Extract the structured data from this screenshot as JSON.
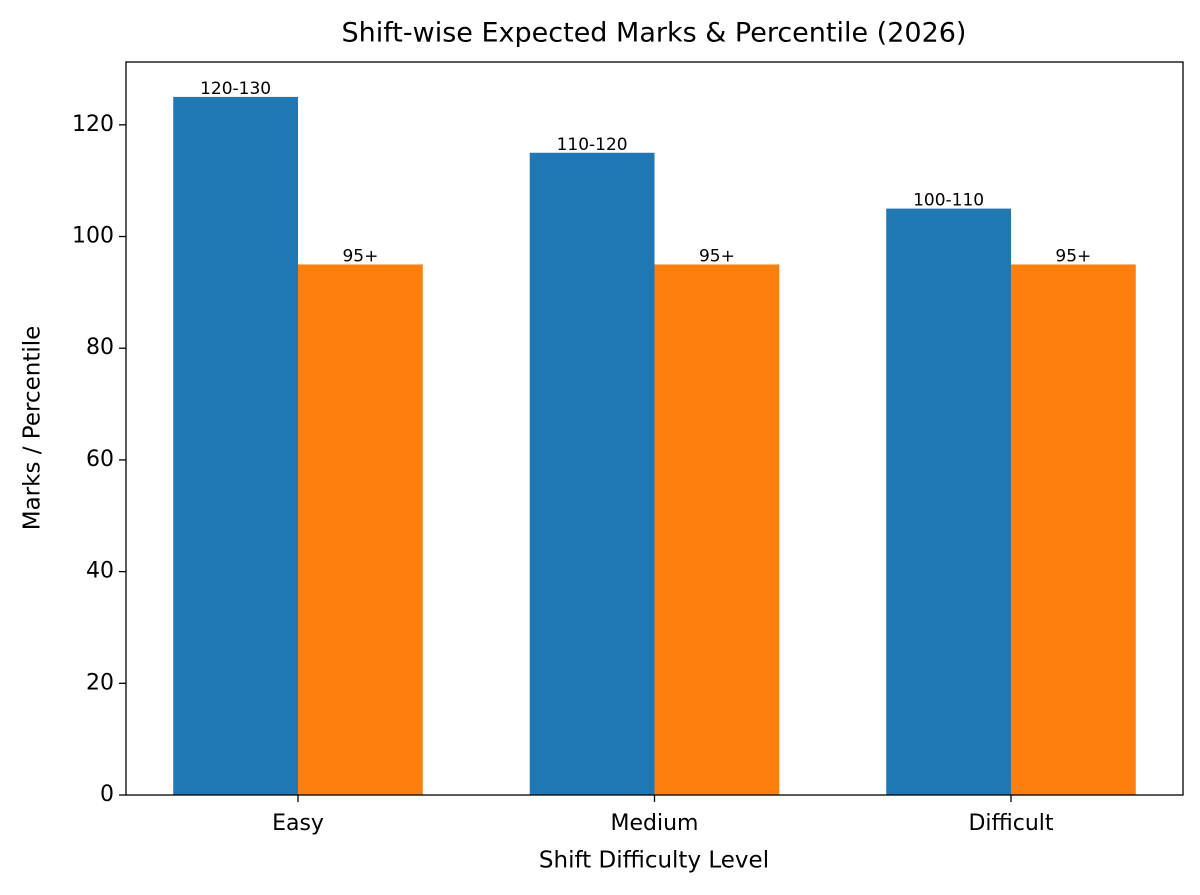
{
  "chart_data": {
    "type": "bar",
    "title": "Shift-wise Expected Marks & Percentile (2026)",
    "x_label": "Shift Difficulty Level",
    "y_label": "Marks / Percentile",
    "categories": [
      "Easy",
      "Medium",
      "Difficult"
    ],
    "series": [
      {
        "color": "#1f77b4",
        "values": [
          125,
          115,
          105
        ],
        "value_labels": [
          "120-130",
          "110-120",
          "100-110"
        ]
      },
      {
        "color": "#ff7f0e",
        "values": [
          95,
          95,
          95
        ],
        "value_labels": [
          "95+",
          "95+",
          "95+"
        ]
      }
    ],
    "ylim": [
      0,
      131.25
    ],
    "yticks": [
      0,
      20,
      40,
      60,
      80,
      100,
      120
    ],
    "grid": false
  }
}
